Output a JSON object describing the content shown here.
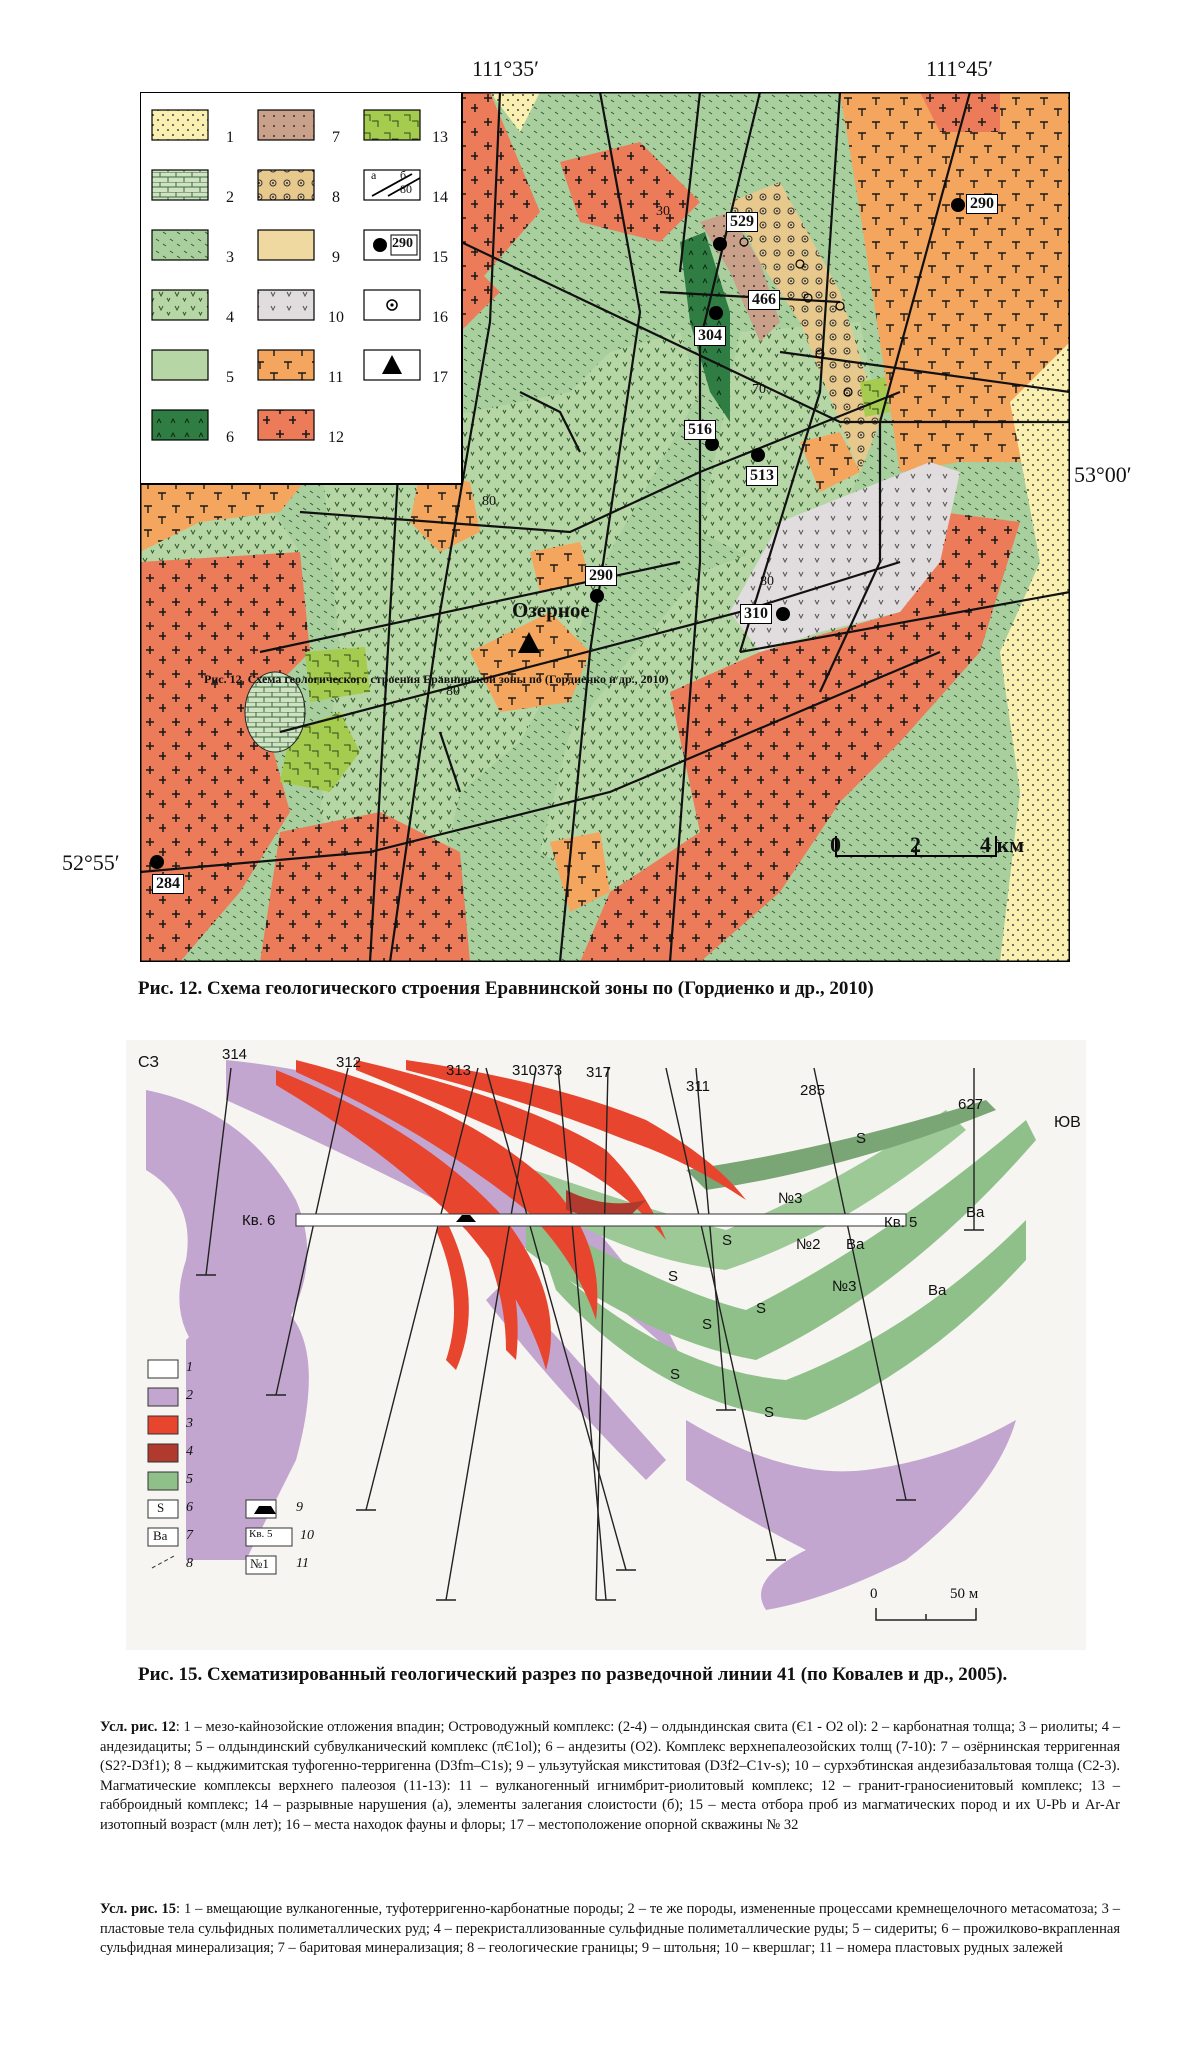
{
  "fig12": {
    "coords": {
      "lon1": "111°35′",
      "lon2": "111°45′",
      "lat1": "53°00′",
      "lat2": "52°55′"
    },
    "scale": {
      "t0": "0",
      "t2": "2",
      "t4": "4 км"
    },
    "place": "Озерное",
    "samples": [
      "529",
      "466",
      "304",
      "516",
      "513",
      "290",
      "290",
      "310",
      "284"
    ],
    "dips": [
      "30",
      "70",
      "80",
      "80",
      "80"
    ],
    "overlay": "Рис. 12. Схема геологического строения Еравнинской зоны по (Гордиенко и др., 2010)",
    "legend_nums": [
      "1",
      "2",
      "3",
      "4",
      "5",
      "6",
      "7",
      "8",
      "9",
      "10",
      "11",
      "12",
      "13",
      "14",
      "15",
      "16",
      "17"
    ],
    "legend14": {
      "a": "а",
      "b": "б",
      "n": "80"
    },
    "legend15": "290",
    "caption": "Рис. 12. Схема геологического строения Еравнинской зоны по (Гордиенко и др., 2010)"
  },
  "fig15": {
    "nw": "СЗ",
    "se": "ЮВ",
    "wells": [
      "314",
      "312",
      "313",
      "310373",
      "317",
      "311",
      "285",
      "627"
    ],
    "adits": {
      "kv6": "Кв. 6",
      "kv5": "Кв. 5"
    },
    "bodies": {
      "n3a": "№3",
      "n2": "№2",
      "n3b": "№3"
    },
    "marks": {
      "s": "S",
      "ba": "Ba"
    },
    "scale": {
      "t0": "0",
      "t50": "50 м"
    },
    "legend": [
      "1",
      "2",
      "3",
      "4",
      "5",
      "6",
      "7",
      "8",
      "9",
      "10",
      "11"
    ],
    "legend_s": "S",
    "legend_ba": "Ba",
    "legend_kv": "Кв. 5",
    "legend_n": "№1",
    "caption": "Рис. 15. Схематизированный геологический разрез по разведочной линии 41 (по Ковалев и др., 2005)."
  },
  "notes": {
    "n12_title": "Усл. рис. 12",
    "n12_text": ":  1 – мезо-кайнозойские отложения впадин; Островодужный комплекс: (2-4) – олдындинская свита (Є1 - О2 ol): 2 – карбонатная толща; 3 – риолиты; 4 – андезидациты; 5 – олдындинский субвулканический комплекс (πЄ1ol); 6 – андезиты (О2). Комплекс верхнепалеозойских толщ (7-10): 7 – озёрнинская терригенная (S2?-D3f1); 8 – кыджимитская туфогенно-терригенна (D3fm–C1s); 9 – ульзутуйская микститовая (D3f2–C1v-s); 10 – сурхэбтинская андезибазальтовая толща (С2-3). Магматические комплексы верхнего палеозоя (11-13): 11 – вулканогенный игнимбрит-риолитовый комплекс; 12 – гранит-граносиенитовый комплекс; 13 – габброидный комплекс; 14 – разрывные нарушения (а), элементы залегания слоистости (б); 15 – места отбора проб из магматических пород и их U-Pb и Ar-Ar изотопный возраст (млн лет); 16 – места находок фауны и флоры; 17 – местоположение опорной скважины № 32",
    "n15_title": "Усл. рис. 15",
    "n15_text": ": 1 – вмещающие вулканогенные, туфотерригенно-карбонатные породы; 2 – те же породы, измененные процессами кремнещелочного метасоматоза; 3 – пластовые тела сульфидных полиметаллических руд; 4 – перекристаллизованные сульфидные полиметаллические руды; 5 – сидериты; 6 – прожилково-вкрапленная сульфидная минерализация; 7 – баритовая минерализация; 8 – геологические границы; 9 – штольня; 10 – квершлаг; 11 – номера пластовых рудных залежей"
  }
}
